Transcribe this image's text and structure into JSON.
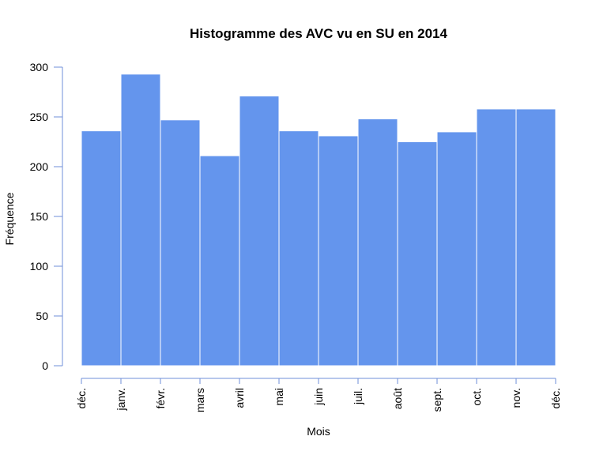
{
  "chart_data": {
    "type": "bar",
    "title": "Histogramme des AVC vu en SU en 2014",
    "xlabel": "Mois",
    "ylabel": "Fréquence",
    "x_tick_labels": [
      "déc.",
      "janv.",
      "févr.",
      "mars",
      "avril",
      "mai",
      "juin",
      "juil.",
      "août",
      "sept.",
      "oct.",
      "nov.",
      "déc."
    ],
    "y_ticks": [
      0,
      50,
      100,
      150,
      200,
      250,
      300
    ],
    "ylim": [
      0,
      300
    ],
    "categories": [
      "déc.–janv.",
      "janv.–févr.",
      "févr.–mars",
      "mars–avril",
      "avril–mai",
      "mai–juin",
      "juin–juil.",
      "juil.–août",
      "août–sept.",
      "sept.–oct.",
      "oct.–nov.",
      "nov.–déc."
    ],
    "values": [
      236,
      293,
      247,
      211,
      271,
      236,
      231,
      248,
      225,
      235,
      258,
      258
    ],
    "bar_color": "#6495ed",
    "axis_color": "#6f8fd8",
    "grid": false,
    "legend": "none"
  }
}
